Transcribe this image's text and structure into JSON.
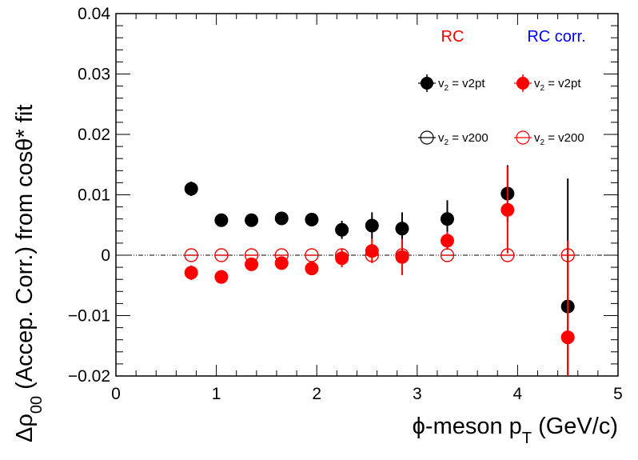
{
  "chart_data": {
    "type": "scatter",
    "title": "",
    "xlabel": "ϕ-meson p_T (GeV/c)",
    "ylabel": "Δρ_00 (Accep. Corr.) from cosθ* fit",
    "xlim": [
      0,
      5
    ],
    "ylim": [
      -0.02,
      0.04
    ],
    "x_ticks": [
      "0",
      "1",
      "2",
      "3",
      "4",
      "5"
    ],
    "y_ticks": [
      "−0.02",
      "−0.01",
      "0",
      "0.01",
      "0.02",
      "0.03",
      "0.04"
    ],
    "grid": false,
    "reference_line_y": 0,
    "legend": {
      "placement": "top-right",
      "column_headers": [
        {
          "text": "RC",
          "color": "#ff0000"
        },
        {
          "text": "RC corr.",
          "color": "#0000ff"
        }
      ],
      "entries": [
        {
          "label": "v",
          "sub": "2",
          "rest": " = v2pt",
          "marker": "filled",
          "color": "#000000"
        },
        {
          "label": "v",
          "sub": "2",
          "rest": " = v2pt",
          "marker": "filled",
          "color": "#ff0000"
        },
        {
          "label": "v",
          "sub": "2",
          "rest": " = v200",
          "marker": "open",
          "color": "#000000"
        },
        {
          "label": "v",
          "sub": "2",
          "rest": " = v200",
          "marker": "open",
          "color": "#ff0000"
        }
      ]
    },
    "series": [
      {
        "color": "#000000",
        "marker": "filled",
        "points": [
          {
            "x": 0.75,
            "y": 0.011,
            "err": 0.0012
          },
          {
            "x": 1.05,
            "y": 0.0058,
            "err": 0.0006
          },
          {
            "x": 1.35,
            "y": 0.0058,
            "err": 0.0006
          },
          {
            "x": 1.65,
            "y": 0.0061,
            "err": 0.0007
          },
          {
            "x": 1.95,
            "y": 0.0059,
            "err": 0.0009
          },
          {
            "x": 2.25,
            "y": 0.0042,
            "err": 0.0015
          },
          {
            "x": 2.55,
            "y": 0.0049,
            "err": 0.0022
          },
          {
            "x": 2.85,
            "y": 0.0044,
            "err": 0.0027
          },
          {
            "x": 3.3,
            "y": 0.006,
            "err": 0.0031
          },
          {
            "x": 3.9,
            "y": 0.0102,
            "err": 0.0047
          },
          {
            "x": 4.5,
            "y": -0.0085,
            "err": 0.0212
          }
        ]
      },
      {
        "color": "#ff0000",
        "marker": "filled",
        "points": [
          {
            "x": 0.75,
            "y": -0.0029,
            "err": 0.0012
          },
          {
            "x": 1.05,
            "y": -0.0036,
            "err": 0.0006
          },
          {
            "x": 1.35,
            "y": -0.0015,
            "err": 0.0006
          },
          {
            "x": 1.65,
            "y": -0.0013,
            "err": 0.0007
          },
          {
            "x": 1.95,
            "y": -0.0022,
            "err": 0.0009
          },
          {
            "x": 2.25,
            "y": -0.0005,
            "err": 0.0015
          },
          {
            "x": 2.55,
            "y": 0.0007,
            "err": 0.002
          },
          {
            "x": 2.85,
            "y": -0.0003,
            "err": 0.003
          },
          {
            "x": 3.3,
            "y": 0.0024,
            "err": 0.0015
          },
          {
            "x": 3.9,
            "y": 0.0075,
            "err": 0.0072
          },
          {
            "x": 4.5,
            "y": -0.0136,
            "err": 0.016
          }
        ]
      },
      {
        "color": "#000000",
        "marker": "open",
        "points": [
          {
            "x": 0.75,
            "y": 0
          },
          {
            "x": 1.05,
            "y": 0
          },
          {
            "x": 1.35,
            "y": 0
          },
          {
            "x": 1.65,
            "y": 0
          },
          {
            "x": 1.95,
            "y": 0
          },
          {
            "x": 2.25,
            "y": 0
          },
          {
            "x": 2.55,
            "y": 0
          },
          {
            "x": 2.85,
            "y": 0
          },
          {
            "x": 3.3,
            "y": 0
          },
          {
            "x": 3.9,
            "y": 0
          },
          {
            "x": 4.5,
            "y": 0
          }
        ]
      },
      {
        "color": "#ff0000",
        "marker": "open",
        "points": [
          {
            "x": 0.75,
            "y": 0
          },
          {
            "x": 1.05,
            "y": 0
          },
          {
            "x": 1.35,
            "y": 0
          },
          {
            "x": 1.65,
            "y": 0
          },
          {
            "x": 1.95,
            "y": 0
          },
          {
            "x": 2.25,
            "y": 0
          },
          {
            "x": 2.55,
            "y": 0
          },
          {
            "x": 2.85,
            "y": 0
          },
          {
            "x": 3.3,
            "y": 0
          },
          {
            "x": 3.9,
            "y": 0
          },
          {
            "x": 4.5,
            "y": 0
          }
        ]
      }
    ]
  }
}
